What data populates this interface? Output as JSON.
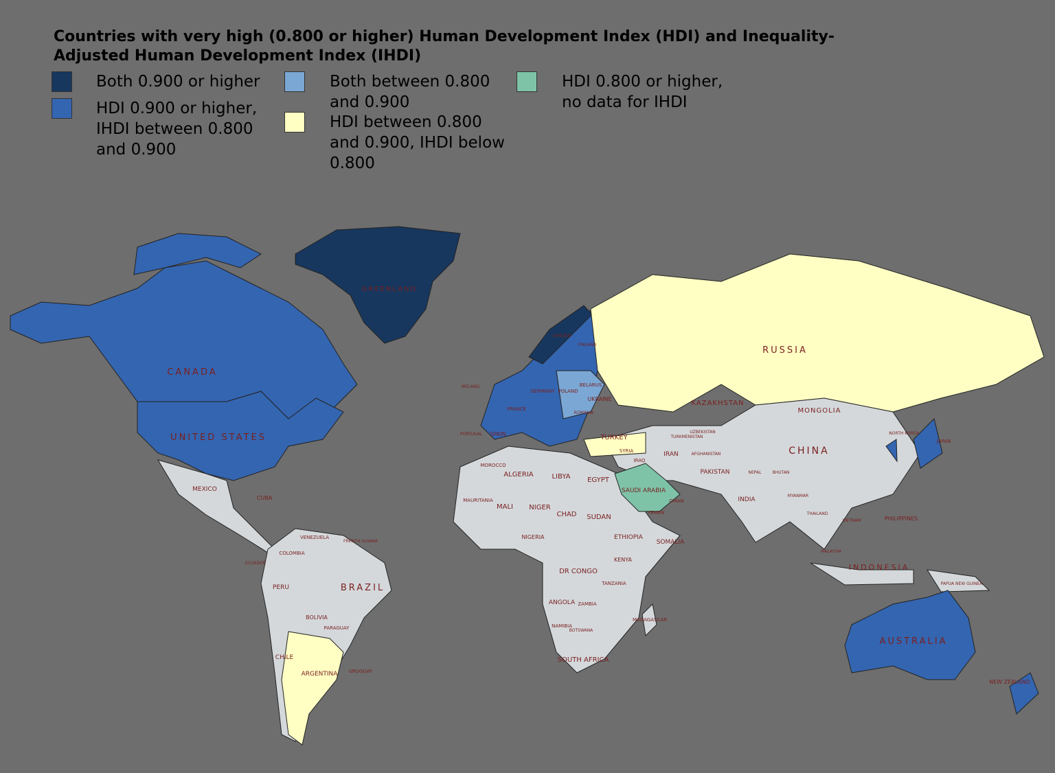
{
  "header": {
    "title_line_1": "Countries with very high (0.800 or higher) Human Development Index (HDI) and Inequality-",
    "title_line_2": "Adjusted Human Development Index (IHDI)"
  },
  "legend": [
    {
      "lines": [
        "Both 0.900 or higher"
      ],
      "color": "#17375e"
    },
    {
      "lines": [
        "HDI 0.900 or higher,",
        "IHDI between 0.800",
        "and 0.900"
      ],
      "color": "#3465b0"
    },
    {
      "lines": [
        "Both between 0.800",
        "and 0.900"
      ],
      "color": "#7ba7d4"
    },
    {
      "lines": [
        "HDI between 0.800",
        "and 0.900, IHDI below",
        "0.800"
      ],
      "color": "#ffffc4"
    },
    {
      "lines": [
        "HDI 0.800 or higher,",
        "no data for IHDI"
      ],
      "color": "#7ec3a8"
    }
  ],
  "map": {
    "labels": [
      "GREENLAND",
      "CANADA",
      "UNITED STATES",
      "RUSSIA",
      "KAZAKHSTAN",
      "MONGOLIA",
      "CHINA",
      "BRAZIL",
      "AUSTRALIA",
      "ALGERIA",
      "LIBYA",
      "EGYPT",
      "MALI",
      "NIGER",
      "CHAD",
      "SUDAN",
      "ETHIOPIA",
      "SOMALIA",
      "DR CONGO",
      "ANGOLA",
      "SOUTH AFRICA",
      "MADAGASCAR",
      "INDIA",
      "IRAN",
      "TURKEY",
      "SAUDI ARABIA",
      "PAKISTAN",
      "MEXICO",
      "COLOMBIA",
      "VENEZUELA",
      "PERU",
      "BOLIVIA",
      "ARGENTINA",
      "CHILE",
      "URUGUAY",
      "PARAGUAY",
      "INDONESIA",
      "JAPAN",
      "NEW ZEALAND",
      "UKRAINE",
      "POLAND",
      "FRANCE",
      "SPAIN",
      "GERMANY",
      "FINLAND",
      "SWEDEN",
      "BELARUS",
      "ROMANIA",
      "PHILIPPINES",
      "KENYA",
      "TANZANIA",
      "NAMIBIA",
      "ZAMBIA",
      "BOTSWANA",
      "NIGERIA",
      "MOROCCO",
      "IRAQ",
      "YEMEN",
      "OMAN",
      "AFGHANISTAN",
      "SYRIA",
      "MAURITANIA",
      "CUBA",
      "ECUADOR",
      "IRELAND",
      "PORTUGAL",
      "THAILAND",
      "MYANMAR",
      "VIETNAM",
      "MALAYSIA",
      "PAPUA NEW GUINEA",
      "NORTH KOREA",
      "FRENCH GUIANA",
      "UZBEKISTAN",
      "TURKMENISTAN",
      "NEPAL",
      "BHUTAN"
    ]
  }
}
